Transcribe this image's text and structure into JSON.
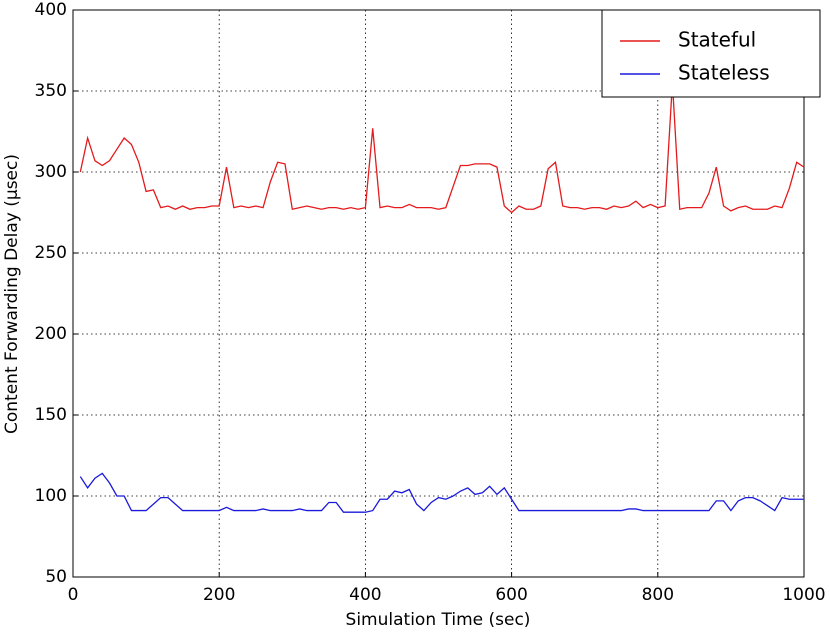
{
  "chart_data": {
    "type": "line",
    "xlabel": "Simulation Time (sec)",
    "ylabel": "Content Forwarding Delay (μsec)",
    "x": [
      10,
      20,
      30,
      40,
      50,
      60,
      70,
      80,
      90,
      100,
      110,
      120,
      130,
      140,
      150,
      160,
      170,
      180,
      190,
      200,
      210,
      220,
      230,
      240,
      250,
      260,
      270,
      280,
      290,
      300,
      310,
      320,
      330,
      340,
      350,
      360,
      370,
      380,
      390,
      400,
      410,
      420,
      430,
      440,
      450,
      460,
      470,
      480,
      490,
      500,
      510,
      520,
      530,
      540,
      550,
      560,
      570,
      580,
      590,
      600,
      610,
      620,
      630,
      640,
      650,
      660,
      670,
      680,
      690,
      700,
      710,
      720,
      730,
      740,
      750,
      760,
      770,
      780,
      790,
      800,
      810,
      820,
      830,
      840,
      850,
      860,
      870,
      880,
      890,
      900,
      910,
      920,
      930,
      940,
      950,
      960,
      970,
      980,
      990,
      1000
    ],
    "series": [
      {
        "name": "Stateful",
        "color": "#e41a1c",
        "values": [
          300,
          321,
          307,
          304,
          307,
          314,
          321,
          317,
          306,
          288,
          289,
          278,
          279,
          277,
          279,
          277,
          278,
          278,
          279,
          279,
          303,
          278,
          279,
          278,
          279,
          278,
          294,
          306,
          305,
          277,
          278,
          279,
          278,
          277,
          278,
          278,
          277,
          278,
          277,
          278,
          327,
          278,
          279,
          278,
          278,
          280,
          278,
          278,
          278,
          277,
          278,
          291,
          304,
          304,
          305,
          305,
          305,
          303,
          279,
          275,
          279,
          277,
          277,
          279,
          302,
          306,
          279,
          278,
          278,
          277,
          278,
          278,
          277,
          279,
          278,
          279,
          282,
          278,
          280,
          278,
          279,
          355,
          277,
          278,
          278,
          278,
          287,
          303,
          279,
          276,
          278,
          279,
          277,
          277,
          277,
          279,
          278,
          290,
          306,
          303
        ]
      },
      {
        "name": "Stateless",
        "color": "#1a1adb",
        "values": [
          112,
          105,
          111,
          114,
          108,
          100,
          100,
          91,
          91,
          91,
          95,
          99,
          99,
          95,
          91,
          91,
          91,
          91,
          91,
          91,
          93,
          91,
          91,
          91,
          91,
          92,
          91,
          91,
          91,
          91,
          92,
          91,
          91,
          91,
          96,
          96,
          90,
          90,
          90,
          90,
          91,
          98,
          98,
          103,
          102,
          104,
          95,
          91,
          96,
          99,
          98,
          100,
          103,
          105,
          101,
          102,
          106,
          101,
          105,
          98,
          91,
          91,
          91,
          91,
          91,
          91,
          91,
          91,
          91,
          91,
          91,
          91,
          91,
          91,
          91,
          92,
          92,
          91,
          91,
          91,
          91,
          91,
          91,
          91,
          91,
          91,
          91,
          97,
          97,
          91,
          97,
          99,
          99,
          97,
          94,
          91,
          99,
          98,
          98,
          98
        ]
      }
    ],
    "xlim": [
      0,
      1000
    ],
    "xticks": [
      0,
      200,
      400,
      600,
      800,
      1000
    ],
    "ylim": [
      50,
      400
    ],
    "yticks": [
      50,
      100,
      150,
      200,
      250,
      300,
      350,
      400
    ],
    "grid": true,
    "legend": "upper-right"
  }
}
